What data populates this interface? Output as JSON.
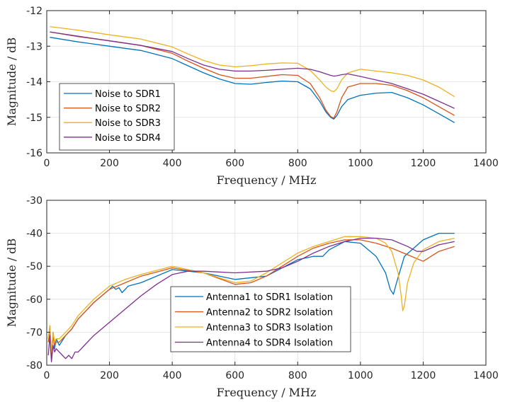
{
  "colors": {
    "blue": "#0072BD",
    "orange": "#D95319",
    "yellow": "#EDB120",
    "purple": "#7E2F8E"
  },
  "chart_data": [
    {
      "type": "line",
      "xlabel": "Frequency / MHz",
      "ylabel": "Magnitude / dB",
      "xlim": [
        0,
        1400
      ],
      "ylim": [
        -16,
        -12
      ],
      "xticks": [
        "0",
        "200",
        "400",
        "600",
        "800",
        "1000",
        "1200",
        "1400"
      ],
      "yticks": [
        "-12",
        "-13",
        "-14",
        "-15",
        "-16"
      ],
      "grid": true,
      "legend": "bottom-left",
      "series": [
        {
          "name": "Noise to SDR1",
          "color": "#0072BD",
          "x": [
            10,
            100,
            200,
            300,
            400,
            450,
            500,
            550,
            600,
            650,
            700,
            750,
            800,
            840,
            870,
            890,
            905,
            915,
            925,
            940,
            960,
            1000,
            1050,
            1100,
            1150,
            1200,
            1250,
            1300
          ],
          "y": [
            -12.75,
            -12.88,
            -13.0,
            -13.12,
            -13.35,
            -13.55,
            -13.75,
            -13.92,
            -14.05,
            -14.07,
            -14.02,
            -13.98,
            -14.0,
            -14.2,
            -14.55,
            -14.85,
            -15.0,
            -15.05,
            -14.95,
            -14.7,
            -14.5,
            -14.38,
            -14.32,
            -14.3,
            -14.45,
            -14.65,
            -14.9,
            -15.15
          ]
        },
        {
          "name": "Noise to SDR2",
          "color": "#D95319",
          "x": [
            10,
            100,
            200,
            300,
            400,
            450,
            500,
            550,
            600,
            650,
            700,
            750,
            800,
            840,
            870,
            890,
            905,
            915,
            925,
            940,
            960,
            1000,
            1050,
            1100,
            1150,
            1200,
            1250,
            1300
          ],
          "y": [
            -12.6,
            -12.73,
            -12.85,
            -12.98,
            -13.2,
            -13.42,
            -13.62,
            -13.8,
            -13.9,
            -13.9,
            -13.85,
            -13.8,
            -13.82,
            -14.05,
            -14.45,
            -14.8,
            -14.98,
            -15.02,
            -14.85,
            -14.45,
            -14.15,
            -14.05,
            -14.05,
            -14.1,
            -14.25,
            -14.45,
            -14.7,
            -14.95
          ]
        },
        {
          "name": "Noise to SDR3",
          "color": "#EDB120",
          "x": [
            10,
            100,
            200,
            300,
            400,
            450,
            500,
            550,
            600,
            650,
            700,
            750,
            800,
            840,
            870,
            890,
            905,
            915,
            925,
            940,
            960,
            1000,
            1050,
            1100,
            1150,
            1200,
            1250,
            1300
          ],
          "y": [
            -12.45,
            -12.55,
            -12.68,
            -12.8,
            -13.02,
            -13.22,
            -13.4,
            -13.53,
            -13.58,
            -13.55,
            -13.5,
            -13.47,
            -13.48,
            -13.68,
            -13.95,
            -14.15,
            -14.25,
            -14.28,
            -14.2,
            -13.95,
            -13.75,
            -13.65,
            -13.7,
            -13.75,
            -13.82,
            -13.95,
            -14.15,
            -14.42
          ]
        },
        {
          "name": "Noise to SDR4",
          "color": "#7E2F8E",
          "x": [
            10,
            100,
            200,
            300,
            400,
            450,
            500,
            550,
            600,
            650,
            700,
            750,
            800,
            840,
            870,
            890,
            905,
            915,
            925,
            940,
            960,
            1000,
            1050,
            1100,
            1150,
            1200,
            1250,
            1300
          ],
          "y": [
            -12.6,
            -12.72,
            -12.85,
            -12.98,
            -13.15,
            -13.35,
            -13.53,
            -13.65,
            -13.7,
            -13.7,
            -13.68,
            -13.65,
            -13.62,
            -13.65,
            -13.72,
            -13.78,
            -13.82,
            -13.84,
            -13.83,
            -13.8,
            -13.78,
            -13.85,
            -13.95,
            -14.05,
            -14.2,
            -14.35,
            -14.55,
            -14.75
          ]
        }
      ]
    },
    {
      "type": "line",
      "xlabel": "Frequency / MHz",
      "ylabel": "Magnitude / dB",
      "xlim": [
        0,
        1400
      ],
      "ylim": [
        -80,
        -30
      ],
      "xticks": [
        "0",
        "200",
        "400",
        "600",
        "800",
        "1000",
        "1200",
        "1400"
      ],
      "yticks": [
        "-30",
        "-40",
        "-50",
        "-60",
        "-70",
        "-80"
      ],
      "grid": true,
      "legend": "center",
      "series": [
        {
          "name": "Antenna1 to SDR1 Isolation",
          "color": "#0072BD",
          "x": [
            5,
            10,
            15,
            20,
            25,
            30,
            40,
            60,
            80,
            100,
            150,
            200,
            210,
            220,
            230,
            240,
            260,
            280,
            300,
            400,
            500,
            600,
            700,
            800,
            850,
            880,
            900,
            950,
            1000,
            1050,
            1080,
            1095,
            1105,
            1115,
            1140,
            1200,
            1250,
            1300
          ],
          "y": [
            -72,
            -68,
            -78,
            -70,
            -75,
            -72,
            -74,
            -71,
            -69,
            -66,
            -61,
            -57,
            -56,
            -57,
            -56.5,
            -58,
            -56,
            -55.5,
            -55,
            -51,
            -52,
            -54,
            -53,
            -48,
            -47,
            -47,
            -45,
            -42.5,
            -43,
            -47,
            -52,
            -57,
            -58.5,
            -55,
            -47,
            -42,
            -40,
            -40
          ]
        },
        {
          "name": "Antenna2 to SDR2 Isolation",
          "color": "#D95319",
          "x": [
            5,
            10,
            15,
            20,
            25,
            30,
            40,
            60,
            80,
            100,
            150,
            200,
            250,
            300,
            400,
            500,
            600,
            650,
            700,
            750,
            800,
            850,
            900,
            950,
            1000,
            1050,
            1100,
            1150,
            1200,
            1250,
            1300
          ],
          "y": [
            -73,
            -69,
            -77,
            -71,
            -74,
            -73,
            -73,
            -71,
            -69,
            -66,
            -61,
            -57,
            -55,
            -53,
            -50.5,
            -52,
            -55.5,
            -55,
            -53,
            -50,
            -47,
            -44.5,
            -43,
            -42,
            -42,
            -43,
            -44.5,
            -46.5,
            -48.5,
            -45.5,
            -44
          ]
        },
        {
          "name": "Antenna3 to SDR3 Isolation",
          "color": "#EDB120",
          "x": [
            5,
            10,
            15,
            20,
            25,
            30,
            40,
            60,
            80,
            100,
            150,
            200,
            250,
            300,
            400,
            500,
            600,
            650,
            700,
            750,
            800,
            850,
            900,
            950,
            1000,
            1050,
            1080,
            1100,
            1120,
            1130,
            1135,
            1140,
            1150,
            1170,
            1200,
            1250,
            1300
          ],
          "y": [
            -72,
            -68,
            -76,
            -70,
            -73,
            -72,
            -72,
            -70,
            -68,
            -65,
            -60,
            -56,
            -54,
            -52.5,
            -50,
            -52,
            -55,
            -54.5,
            -52,
            -49,
            -46,
            -44,
            -42.5,
            -41,
            -41,
            -41.5,
            -43,
            -45.5,
            -52,
            -59,
            -63.5,
            -62,
            -55,
            -49,
            -45,
            -42.5,
            -41.5
          ]
        },
        {
          "name": "Antenna4 to SDR4 Isolation",
          "color": "#7E2F8E",
          "x": [
            5,
            10,
            15,
            20,
            25,
            30,
            40,
            50,
            60,
            70,
            80,
            90,
            100,
            120,
            150,
            200,
            250,
            300,
            350,
            400,
            450,
            500,
            600,
            700,
            750,
            800,
            850,
            900,
            950,
            1000,
            1050,
            1100,
            1150,
            1180,
            1200,
            1250,
            1300
          ],
          "y": [
            -77,
            -71,
            -79,
            -74,
            -76,
            -75,
            -76,
            -77,
            -78,
            -77,
            -78,
            -76,
            -76,
            -74,
            -71,
            -67,
            -63,
            -59,
            -55.5,
            -52.5,
            -51.5,
            -51.5,
            -52,
            -51.5,
            -50.5,
            -48.5,
            -46,
            -44,
            -42.5,
            -41.5,
            -41.5,
            -42,
            -44,
            -45.5,
            -45.5,
            -43.5,
            -42.5
          ]
        }
      ]
    }
  ]
}
